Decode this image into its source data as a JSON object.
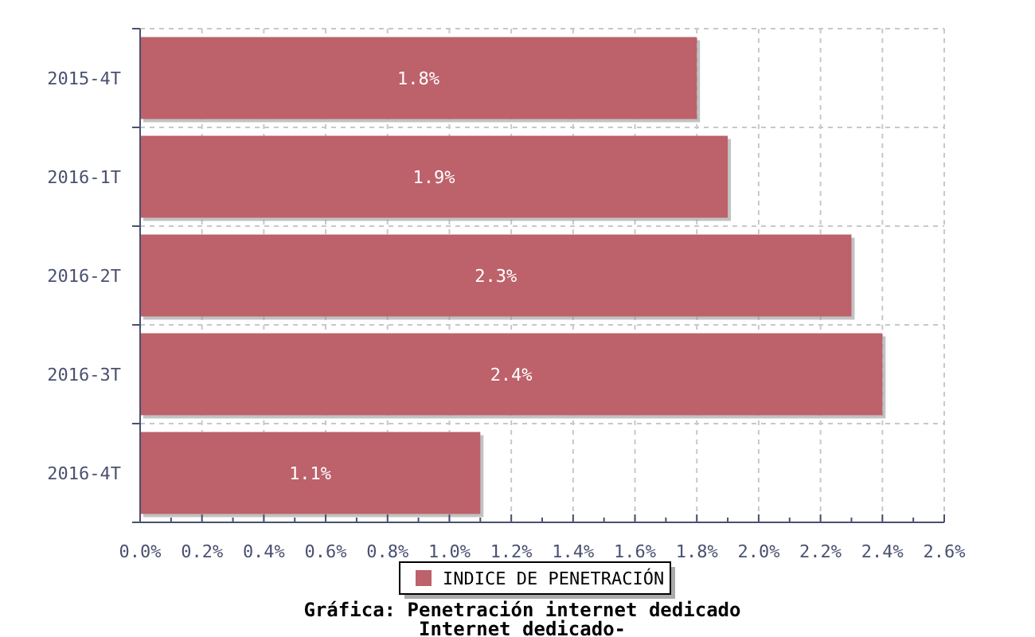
{
  "chart_data": {
    "type": "bar",
    "orientation": "horizontal",
    "title": "Gráfica: Penetración internet dedicado",
    "subtitle": "Internet dedicado-",
    "categories": [
      "2015-4T",
      "2016-1T",
      "2016-2T",
      "2016-3T",
      "2016-4T"
    ],
    "series": [
      {
        "name": "INDICE DE PENETRACIÓN",
        "color": "#bd616b",
        "values": [
          1.8,
          1.9,
          2.3,
          2.4,
          1.1
        ],
        "value_labels": [
          "1.8%",
          "1.9%",
          "2.3%",
          "2.4%",
          "1.1%"
        ]
      }
    ],
    "xlim": [
      0,
      2.6
    ],
    "xticks": [
      {
        "value": 0,
        "label": "0.0%"
      },
      {
        "value": 0.1,
        "label": null
      },
      {
        "value": 0.2,
        "label": "0.2%"
      },
      {
        "value": 0.3,
        "label": null
      },
      {
        "value": 0.4,
        "label": "0.4%"
      },
      {
        "value": 0.5,
        "label": null
      },
      {
        "value": 0.6,
        "label": "0.6%"
      },
      {
        "value": 0.7,
        "label": null
      },
      {
        "value": 0.8,
        "label": "0.8%"
      },
      {
        "value": 0.9,
        "label": null
      },
      {
        "value": 1.0,
        "label": "1.0%"
      },
      {
        "value": 1.1,
        "label": null
      },
      {
        "value": 1.2,
        "label": "1.2%"
      },
      {
        "value": 1.3,
        "label": null
      },
      {
        "value": 1.4,
        "label": "1.4%"
      },
      {
        "value": 1.5,
        "label": null
      },
      {
        "value": 1.6,
        "label": "1.6%"
      },
      {
        "value": 1.7,
        "label": null
      },
      {
        "value": 1.8,
        "label": "1.8%"
      },
      {
        "value": 1.9,
        "label": null
      },
      {
        "value": 2.0,
        "label": "2.0%"
      },
      {
        "value": 2.1,
        "label": null
      },
      {
        "value": 2.2,
        "label": "2.2%"
      },
      {
        "value": 2.3,
        "label": null
      },
      {
        "value": 2.4,
        "label": "2.4%"
      },
      {
        "value": 2.5,
        "label": null
      },
      {
        "value": 2.6,
        "label": "2.6%"
      }
    ],
    "grid": true,
    "legend": "bottom"
  }
}
